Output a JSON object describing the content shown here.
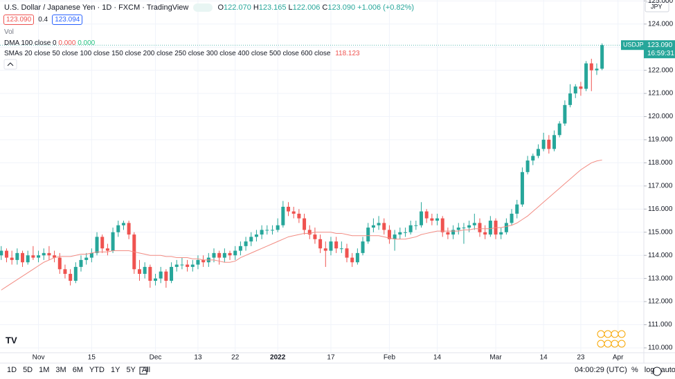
{
  "header": {
    "title": "U.S. Dollar / Japanese Yen · 1D · FXCM · TradingView",
    "ohlc": [
      "O",
      "122.070",
      "H",
      "123.165",
      "L",
      "122.006",
      "C",
      "123.090",
      "+1.006 (+0.82%)"
    ],
    "sell": "123.090",
    "spread": "0.4",
    "buy": "123.094",
    "volume": "Vol",
    "dma": "DMA 100 close 0",
    "dma_values": [
      "0.000",
      "0.000"
    ],
    "smas": "SMAs 20 close 50 close 100 close 150 close 200 close 250 close 300 close 400 close 500 close 600 close",
    "sma_value": "118.123"
  },
  "price_label": {
    "symbol": "USDJPY",
    "price": "123.090",
    "countdown": "16:59:31"
  },
  "currency": "JPY",
  "toolbar": {
    "ranges": [
      "1D",
      "5D",
      "1M",
      "3M",
      "6M",
      "YTD",
      "1Y",
      "5Y",
      "All"
    ],
    "time": "04:00:29 (UTC)",
    "options": [
      "%",
      "log",
      "auto"
    ]
  },
  "chart_data": {
    "type": "candlestick",
    "grid": true,
    "ylim": [
      109.79,
      125.04
    ],
    "yticks": [
      {
        "value": 110,
        "label": "110.000"
      },
      {
        "value": 111,
        "label": "111.000"
      },
      {
        "value": 112,
        "label": "112.000"
      },
      {
        "value": 113,
        "label": "113.000"
      },
      {
        "value": 114,
        "label": "114.000"
      },
      {
        "value": 115,
        "label": "115.000"
      },
      {
        "value": 116,
        "label": "116.000"
      },
      {
        "value": 117,
        "label": "117.000"
      },
      {
        "value": 118,
        "label": "118.000"
      },
      {
        "value": 119,
        "label": "119.000"
      },
      {
        "value": 120,
        "label": "120.000"
      },
      {
        "value": 121,
        "label": "121.000"
      },
      {
        "value": 122,
        "label": "122.000"
      },
      {
        "value": 123,
        "label": "123.000"
      },
      {
        "value": 124,
        "label": "124.000"
      },
      {
        "value": 125,
        "label": "125.000"
      }
    ],
    "categories": [
      null,
      null,
      null,
      null,
      null,
      null,
      null,
      "Nov",
      null,
      null,
      null,
      null,
      null,
      null,
      null,
      null,
      null,
      "15",
      null,
      null,
      null,
      null,
      null,
      null,
      null,
      null,
      null,
      null,
      null,
      "Dec",
      null,
      null,
      null,
      null,
      null,
      null,
      null,
      "13",
      null,
      null,
      null,
      null,
      null,
      null,
      "22",
      null,
      null,
      null,
      null,
      null,
      null,
      null,
      "2022",
      null,
      null,
      null,
      null,
      null,
      null,
      null,
      null,
      null,
      "17",
      null,
      null,
      null,
      null,
      null,
      null,
      null,
      null,
      null,
      null,
      "Feb",
      null,
      null,
      null,
      null,
      null,
      null,
      null,
      null,
      "14",
      null,
      null,
      null,
      null,
      null,
      null,
      null,
      null,
      null,
      null,
      "Mar",
      null,
      null,
      null,
      null,
      null,
      null,
      null,
      null,
      "14",
      null,
      null,
      null,
      null,
      null,
      null,
      "23",
      null,
      null,
      null,
      null,
      null,
      null,
      "Apr"
    ],
    "series": [
      {
        "name": "USDJPY",
        "type": "candlestick",
        "up_color": "#26a69a",
        "down_color": "#ef5350",
        "ohlc": [
          [
            114.0,
            114.4,
            113.8,
            114.2
          ],
          [
            114.2,
            114.3,
            113.7,
            113.9
          ],
          [
            113.9,
            114.2,
            113.6,
            113.8
          ],
          [
            113.8,
            114.3,
            113.6,
            114.1
          ],
          [
            114.1,
            114.2,
            113.5,
            113.7
          ],
          [
            113.7,
            114.2,
            113.6,
            114.0
          ],
          [
            114.0,
            114.4,
            113.8,
            113.9
          ],
          [
            113.9,
            114.2,
            113.7,
            114.0
          ],
          [
            114.0,
            114.3,
            113.8,
            114.1
          ],
          [
            114.1,
            114.4,
            113.8,
            114.0
          ],
          [
            114.0,
            114.2,
            113.7,
            113.9
          ],
          [
            113.9,
            114.1,
            113.2,
            113.4
          ],
          [
            113.4,
            113.6,
            113.0,
            113.2
          ],
          [
            113.2,
            113.4,
            112.7,
            112.9
          ],
          [
            112.9,
            113.7,
            112.8,
            113.5
          ],
          [
            113.5,
            114.0,
            113.3,
            113.8
          ],
          [
            113.8,
            114.1,
            113.6,
            113.9
          ],
          [
            113.9,
            114.3,
            113.7,
            114.1
          ],
          [
            114.1,
            115.0,
            114.0,
            114.8
          ],
          [
            114.8,
            114.9,
            114.1,
            114.3
          ],
          [
            114.3,
            114.5,
            114.0,
            114.2
          ],
          [
            114.2,
            115.2,
            114.1,
            115.0
          ],
          [
            115.0,
            115.5,
            114.8,
            115.3
          ],
          [
            115.3,
            115.5,
            115.1,
            115.4
          ],
          [
            115.4,
            115.5,
            114.7,
            114.9
          ],
          [
            114.9,
            115.0,
            113.2,
            113.4
          ],
          [
            113.4,
            113.8,
            112.9,
            113.2
          ],
          [
            113.2,
            113.7,
            113.0,
            113.5
          ],
          [
            113.5,
            113.6,
            112.6,
            112.9
          ],
          [
            112.9,
            113.2,
            112.7,
            113.0
          ],
          [
            113.0,
            113.5,
            112.8,
            113.3
          ],
          [
            113.3,
            113.4,
            112.6,
            112.9
          ],
          [
            112.9,
            113.7,
            112.8,
            113.5
          ],
          [
            113.5,
            113.8,
            113.3,
            113.6
          ],
          [
            113.6,
            113.9,
            113.4,
            113.6
          ],
          [
            113.6,
            113.8,
            113.3,
            113.5
          ],
          [
            113.5,
            113.8,
            113.3,
            113.6
          ],
          [
            113.6,
            114.0,
            113.4,
            113.8
          ],
          [
            113.8,
            114.0,
            113.5,
            113.7
          ],
          [
            113.7,
            114.1,
            113.5,
            113.9
          ],
          [
            113.9,
            114.3,
            113.7,
            114.1
          ],
          [
            114.1,
            114.2,
            113.6,
            113.9
          ],
          [
            113.9,
            114.3,
            113.7,
            114.1
          ],
          [
            114.1,
            114.2,
            113.8,
            114.0
          ],
          [
            114.0,
            114.4,
            113.8,
            114.2
          ],
          [
            114.2,
            114.6,
            114.0,
            114.4
          ],
          [
            114.4,
            114.8,
            114.2,
            114.6
          ],
          [
            114.6,
            115.0,
            114.4,
            114.8
          ],
          [
            114.8,
            115.1,
            114.6,
            114.9
          ],
          [
            114.9,
            115.3,
            114.7,
            115.1
          ],
          [
            115.1,
            115.3,
            114.9,
            115.1
          ],
          [
            115.1,
            115.3,
            114.9,
            115.1
          ],
          [
            115.1,
            115.6,
            115.0,
            115.3
          ],
          [
            115.3,
            116.35,
            115.2,
            116.1
          ],
          [
            116.1,
            116.3,
            115.7,
            115.9
          ],
          [
            115.9,
            116.1,
            115.6,
            115.8
          ],
          [
            115.8,
            116.0,
            115.4,
            115.6
          ],
          [
            115.6,
            115.8,
            114.9,
            115.1
          ],
          [
            115.1,
            115.3,
            114.7,
            114.9
          ],
          [
            114.9,
            115.2,
            114.5,
            114.7
          ],
          [
            114.7,
            114.9,
            114.1,
            114.3
          ],
          [
            114.3,
            114.6,
            113.5,
            114.2
          ],
          [
            114.2,
            114.8,
            114.0,
            114.6
          ],
          [
            114.6,
            114.8,
            114.1,
            114.3
          ],
          [
            114.3,
            114.6,
            114.1,
            114.3
          ],
          [
            114.3,
            114.5,
            113.7,
            113.9
          ],
          [
            113.9,
            114.1,
            113.5,
            113.7
          ],
          [
            113.7,
            114.3,
            113.6,
            114.1
          ],
          [
            114.1,
            114.8,
            114.0,
            114.6
          ],
          [
            114.6,
            115.4,
            114.5,
            115.2
          ],
          [
            115.2,
            115.6,
            115.0,
            115.3
          ],
          [
            115.3,
            115.7,
            115.1,
            115.4
          ],
          [
            115.4,
            115.6,
            114.9,
            115.1
          ],
          [
            115.1,
            115.3,
            114.5,
            114.7
          ],
          [
            114.7,
            115.1,
            114.2,
            114.9
          ],
          [
            114.9,
            115.2,
            114.7,
            115.0
          ],
          [
            115.0,
            115.2,
            114.8,
            115.0
          ],
          [
            115.0,
            115.5,
            114.9,
            115.3
          ],
          [
            115.3,
            115.5,
            115.1,
            115.3
          ],
          [
            115.3,
            116.3,
            115.2,
            115.9
          ],
          [
            115.9,
            116.0,
            115.4,
            115.6
          ],
          [
            115.6,
            115.8,
            115.3,
            115.5
          ],
          [
            115.5,
            115.8,
            115.3,
            115.6
          ],
          [
            115.6,
            115.7,
            114.8,
            115.0
          ],
          [
            115.0,
            115.2,
            114.7,
            114.9
          ],
          [
            114.9,
            115.3,
            114.7,
            115.1
          ],
          [
            115.1,
            115.4,
            114.9,
            115.2
          ],
          [
            115.2,
            115.4,
            114.5,
            115.2
          ],
          [
            115.2,
            115.5,
            115.0,
            115.3
          ],
          [
            115.3,
            115.8,
            115.1,
            115.4
          ],
          [
            115.4,
            115.6,
            114.8,
            115.0
          ],
          [
            115.0,
            115.3,
            114.7,
            114.9
          ],
          [
            114.9,
            115.7,
            114.8,
            115.5
          ],
          [
            115.5,
            115.6,
            114.7,
            114.9
          ],
          [
            114.9,
            115.2,
            114.7,
            115.0
          ],
          [
            115.0,
            115.6,
            114.9,
            115.4
          ],
          [
            115.4,
            116.0,
            115.3,
            115.8
          ],
          [
            115.8,
            116.4,
            115.6,
            116.2
          ],
          [
            116.2,
            117.8,
            116.1,
            117.6
          ],
          [
            117.6,
            118.3,
            117.5,
            118.1
          ],
          [
            118.1,
            118.4,
            117.9,
            118.3
          ],
          [
            118.3,
            118.8,
            118.2,
            118.6
          ],
          [
            118.6,
            119.3,
            118.5,
            119.0
          ],
          [
            119.0,
            119.2,
            118.4,
            118.6
          ],
          [
            118.6,
            119.4,
            118.5,
            119.2
          ],
          [
            119.2,
            119.8,
            119.1,
            119.7
          ],
          [
            119.7,
            120.7,
            119.6,
            120.5
          ],
          [
            120.5,
            121.4,
            120.4,
            121.0
          ],
          [
            121.0,
            121.4,
            120.8,
            121.3
          ],
          [
            121.3,
            121.5,
            120.9,
            121.2
          ],
          [
            121.2,
            122.4,
            121.1,
            122.3
          ],
          [
            122.3,
            122.5,
            121.1,
            122.0
          ],
          [
            122.0,
            122.3,
            121.8,
            122.07
          ],
          [
            122.07,
            123.165,
            122.006,
            123.09
          ],
          null,
          null,
          null
        ]
      },
      {
        "type": "line",
        "color": "#f28b82",
        "values": [
          112.5,
          112.65,
          112.8,
          112.95,
          113.1,
          113.25,
          113.4,
          113.55,
          113.7,
          113.8,
          113.9,
          113.95,
          113.95,
          113.95,
          114.0,
          114.05,
          114.05,
          114.1,
          114.15,
          114.15,
          114.15,
          114.2,
          114.2,
          114.2,
          114.2,
          114.15,
          114.1,
          114.05,
          114.0,
          114.0,
          114.0,
          113.95,
          113.95,
          113.9,
          113.9,
          113.9,
          113.85,
          113.85,
          113.8,
          113.8,
          113.8,
          113.75,
          113.7,
          113.7,
          113.75,
          113.9,
          114.0,
          114.1,
          114.2,
          114.3,
          114.4,
          114.5,
          114.6,
          114.7,
          114.8,
          114.85,
          114.9,
          114.95,
          114.95,
          115.0,
          115.0,
          115.0,
          115.0,
          114.95,
          114.95,
          114.9,
          114.85,
          114.85,
          114.85,
          114.85,
          114.85,
          114.85,
          114.8,
          114.75,
          114.7,
          114.7,
          114.7,
          114.75,
          114.8,
          114.9,
          114.95,
          115.0,
          115.05,
          115.05,
          115.05,
          115.05,
          115.05,
          115.1,
          115.1,
          115.15,
          115.15,
          115.15,
          115.15,
          115.2,
          115.2,
          115.25,
          115.3,
          115.4,
          115.55,
          115.7,
          115.9,
          116.1,
          116.3,
          116.5,
          116.7,
          116.9,
          117.1,
          117.3,
          117.5,
          117.7,
          117.85,
          118.0,
          118.08,
          118.123,
          null,
          null,
          null
        ]
      }
    ]
  }
}
